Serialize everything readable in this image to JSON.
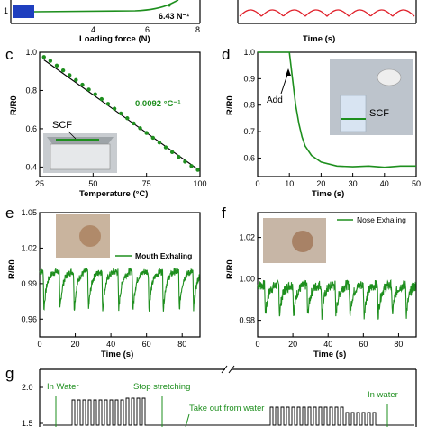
{
  "colors": {
    "green": "#1e8f1e",
    "red": "#e0202a",
    "blue": "#1f3fbf",
    "black": "#000000"
  },
  "panel_a": {
    "xlabel": "Loading force (N)",
    "annotation": "6.43 N⁻¹",
    "xticks": [
      "4",
      "6",
      "8"
    ],
    "yticks": [
      "1"
    ]
  },
  "panel_b": {
    "xlabel": "Time (s)"
  },
  "panel_c": {
    "label": "c",
    "xlabel": "Temperature (°C)",
    "ylabel": "R/R0",
    "annotation": "0.0092 °C⁻¹",
    "inset_label": "SCF",
    "xticks": [
      "25",
      "50",
      "75",
      "100"
    ],
    "yticks": [
      "0.4",
      "0.6",
      "0.8",
      "1.0"
    ]
  },
  "panel_d": {
    "label": "d",
    "xlabel": "Time (s)",
    "ylabel": "R/R0",
    "arrow_label": "Add",
    "inset_label": "SCF",
    "xticks": [
      "0",
      "10",
      "20",
      "30",
      "40",
      "50"
    ],
    "yticks": [
      "0.6",
      "0.7",
      "0.8",
      "0.9",
      "1.0"
    ]
  },
  "panel_e": {
    "label": "e",
    "xlabel": "Time (s)",
    "ylabel": "R/R0",
    "legend": "Mouth Exhaling",
    "xticks": [
      "0",
      "20",
      "40",
      "60",
      "80"
    ],
    "yticks": [
      "0.96",
      "0.99",
      "1.02",
      "1.05"
    ]
  },
  "panel_f": {
    "label": "f",
    "xlabel": "Time (s)",
    "ylabel": "R/R0",
    "legend": "Nose Exhaling",
    "xticks": [
      "0",
      "20",
      "40",
      "60",
      "80"
    ],
    "yticks": [
      "0.98",
      "1.00",
      "1.02"
    ]
  },
  "panel_g": {
    "label": "g",
    "annotations": [
      "In Water",
      "Stop stretching",
      "Take out from water",
      "In water"
    ],
    "yticks": [
      "1.5",
      "2.0"
    ]
  },
  "chart_data": [
    {
      "panel": "c",
      "type": "scatter",
      "xlabel": "Temperature (°C)",
      "ylabel": "R/R0",
      "xlim": [
        25,
        100
      ],
      "ylim": [
        0.35,
        1.0
      ],
      "x": [
        27,
        30,
        33,
        36,
        39,
        42,
        45,
        48,
        51,
        54,
        57,
        60,
        63,
        66,
        69,
        72,
        75,
        78,
        81,
        84,
        87,
        90,
        93,
        96,
        99
      ],
      "y": [
        0.975,
        0.955,
        0.93,
        0.905,
        0.88,
        0.855,
        0.83,
        0.805,
        0.78,
        0.755,
        0.73,
        0.705,
        0.68,
        0.655,
        0.628,
        0.603,
        0.578,
        0.553,
        0.528,
        0.503,
        0.478,
        0.453,
        0.428,
        0.405,
        0.385
      ],
      "fit": {
        "x": [
          27,
          100
        ],
        "y": [
          0.96,
          0.38
        ]
      }
    },
    {
      "panel": "d",
      "type": "line",
      "xlabel": "Time (s)",
      "ylabel": "R/R0",
      "xlim": [
        0,
        50
      ],
      "ylim": [
        0.53,
        1.0
      ],
      "x": [
        0,
        5,
        10,
        11,
        12,
        13,
        14,
        15,
        17,
        20,
        25,
        30,
        35,
        40,
        45,
        50
      ],
      "y": [
        1.0,
        1.0,
        1.0,
        0.9,
        0.8,
        0.73,
        0.68,
        0.645,
        0.61,
        0.585,
        0.57,
        0.567,
        0.57,
        0.565,
        0.57,
        0.57
      ]
    },
    {
      "panel": "e",
      "type": "line",
      "legend": "Mouth Exhaling",
      "xlabel": "Time (s)",
      "ylabel": "R/R0",
      "xlim": [
        0,
        90
      ],
      "ylim": [
        0.945,
        1.05
      ],
      "peak_times": [
        2,
        11,
        19,
        27,
        35,
        44,
        52,
        61,
        69,
        78,
        86
      ],
      "baseline": 1.0,
      "dip": 0.958
    },
    {
      "panel": "f",
      "type": "line",
      "legend": "Nose Exhaling",
      "xlabel": "Time (s)",
      "ylabel": "R/R0",
      "xlim": [
        0,
        90
      ],
      "ylim": [
        0.972,
        1.032
      ],
      "peak_times": [
        4,
        12,
        20,
        28,
        36,
        44,
        52,
        60,
        68,
        76,
        84
      ],
      "baseline": 0.997,
      "dip": 0.978
    }
  ]
}
